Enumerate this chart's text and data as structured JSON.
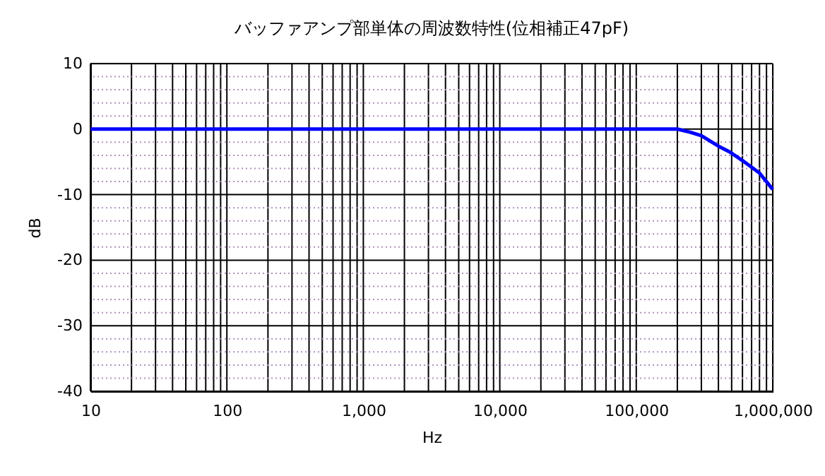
{
  "chart_data": {
    "type": "line",
    "title": "バッファアンプ部単体の周波数特性(位相補正47pF)",
    "xlabel": "Hz",
    "ylabel": "dB",
    "log": "x",
    "grid": true,
    "line_style": "solid",
    "xlim": [
      10,
      1000000
    ],
    "ylim": [
      -40,
      10
    ],
    "xticks": [
      10,
      {
        "value": 20,
        "label": null
      },
      {
        "value": 30,
        "label": null
      },
      {
        "value": 40,
        "label": null
      },
      {
        "value": 50,
        "label": null
      },
      {
        "value": 60,
        "label": null
      },
      {
        "value": 70,
        "label": null
      },
      {
        "value": 80,
        "label": null
      },
      {
        "value": 90,
        "label": null
      },
      100,
      {
        "value": 200,
        "label": null
      },
      {
        "value": 300,
        "label": null
      },
      {
        "value": 400,
        "label": null
      },
      {
        "value": 500,
        "label": null
      },
      {
        "value": 600,
        "label": null
      },
      {
        "value": 700,
        "label": null
      },
      {
        "value": 800,
        "label": null
      },
      {
        "value": 900,
        "label": null
      },
      {
        "value": 1000,
        "label": "1,000"
      },
      {
        "value": 2000,
        "label": null
      },
      {
        "value": 3000,
        "label": null
      },
      {
        "value": 4000,
        "label": null
      },
      {
        "value": 5000,
        "label": null
      },
      {
        "value": 6000,
        "label": null
      },
      {
        "value": 7000,
        "label": null
      },
      {
        "value": 8000,
        "label": null
      },
      {
        "value": 9000,
        "label": null
      },
      {
        "value": 10000,
        "label": "10,000"
      },
      {
        "value": 20000,
        "label": null
      },
      {
        "value": 30000,
        "label": null
      },
      {
        "value": 40000,
        "label": null
      },
      {
        "value": 50000,
        "label": null
      },
      {
        "value": 60000,
        "label": null
      },
      {
        "value": 70000,
        "label": null
      },
      {
        "value": 80000,
        "label": null
      },
      {
        "value": 90000,
        "label": null
      },
      {
        "value": 100000,
        "label": "100,000"
      },
      {
        "value": 200000,
        "label": null
      },
      {
        "value": 300000,
        "label": null
      },
      {
        "value": 400000,
        "label": null
      },
      {
        "value": 500000,
        "label": null
      },
      {
        "value": 600000,
        "label": null
      },
      {
        "value": 700000,
        "label": null
      },
      {
        "value": 800000,
        "label": null
      },
      {
        "value": 900000,
        "label": null
      },
      {
        "value": 1000000,
        "label": "1,000,000"
      }
    ],
    "yticks": [
      -40,
      {
        "value": -38,
        "label": null
      },
      {
        "value": -36,
        "label": null
      },
      {
        "value": -34,
        "label": null
      },
      {
        "value": -32,
        "label": null
      },
      -30,
      {
        "value": -28,
        "label": null
      },
      {
        "value": -26,
        "label": null
      },
      {
        "value": -24,
        "label": null
      },
      {
        "value": -22,
        "label": null
      },
      -20,
      {
        "value": -18,
        "label": null
      },
      {
        "value": -16,
        "label": null
      },
      {
        "value": -14,
        "label": null
      },
      {
        "value": -12,
        "label": null
      },
      -10,
      {
        "value": -8,
        "label": null
      },
      {
        "value": -6,
        "label": null
      },
      {
        "value": -4,
        "label": null
      },
      {
        "value": -2,
        "label": null
      },
      0,
      {
        "value": 2,
        "label": null
      },
      {
        "value": 4,
        "label": null
      },
      {
        "value": 6,
        "label": null
      },
      {
        "value": 8,
        "label": null
      },
      10
    ],
    "series": [
      {
        "color": "#0000ff",
        "x": [
          10,
          200000,
          250000,
          300000,
          400000,
          485000,
          600000,
          800000,
          1000000
        ],
        "values": [
          0,
          0,
          -0.5,
          -1.0,
          -2.6,
          -3.5,
          -4.8,
          -6.7,
          -9.2
        ]
      }
    ]
  }
}
